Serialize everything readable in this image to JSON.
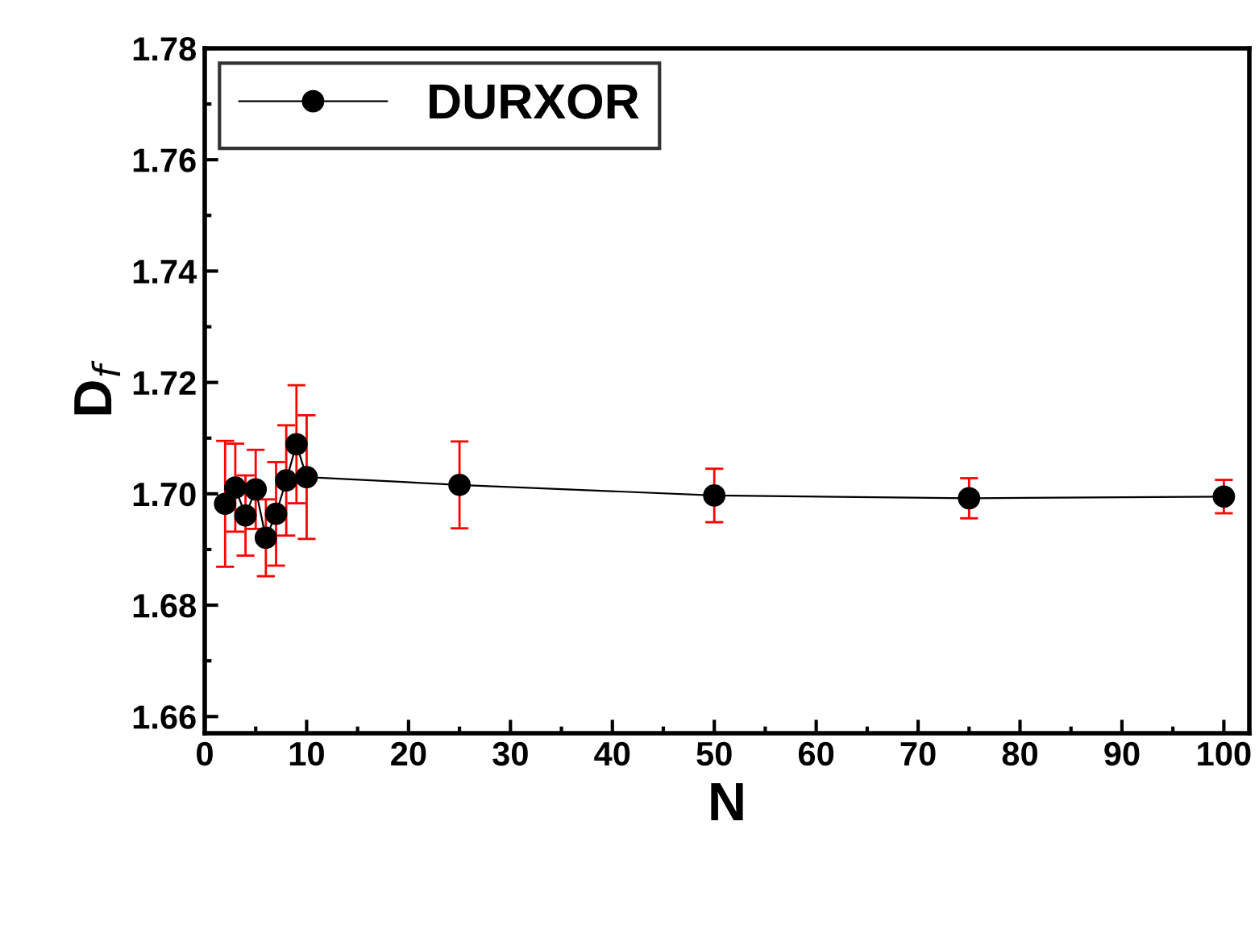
{
  "chart_data": {
    "type": "line",
    "xlabel": "N",
    "ylabel": "D$_{f}$",
    "x": [
      2,
      3,
      4,
      5,
      6,
      7,
      8,
      9,
      10,
      25,
      50,
      75,
      100
    ],
    "series": [
      {
        "name": "DURXOR",
        "color": "#000000",
        "values": [
          1.6982,
          1.7011,
          1.6961,
          1.7008,
          1.6921,
          1.6964,
          1.7024,
          1.7089,
          1.703,
          1.7016,
          1.6997,
          1.6992,
          1.6995
        ],
        "errors": [
          0.0113,
          0.0079,
          0.0072,
          0.0071,
          0.0069,
          0.0093,
          0.0099,
          0.0106,
          0.0111,
          0.0078,
          0.0048,
          0.0036,
          0.003
        ]
      }
    ],
    "xlim": [
      0,
      102.5
    ],
    "xticks": [
      0,
      10,
      20,
      30,
      40,
      50,
      60,
      70,
      80,
      90,
      100
    ],
    "ylim": [
      1.657,
      1.78
    ],
    "yticks": [
      1.66,
      1.68,
      {
        "value": 1.7,
        "label": "1.70"
      },
      1.72,
      1.74,
      1.76,
      1.78
    ],
    "marker": "circle",
    "line_style": "solid",
    "legend": "top left",
    "grid": false
  }
}
